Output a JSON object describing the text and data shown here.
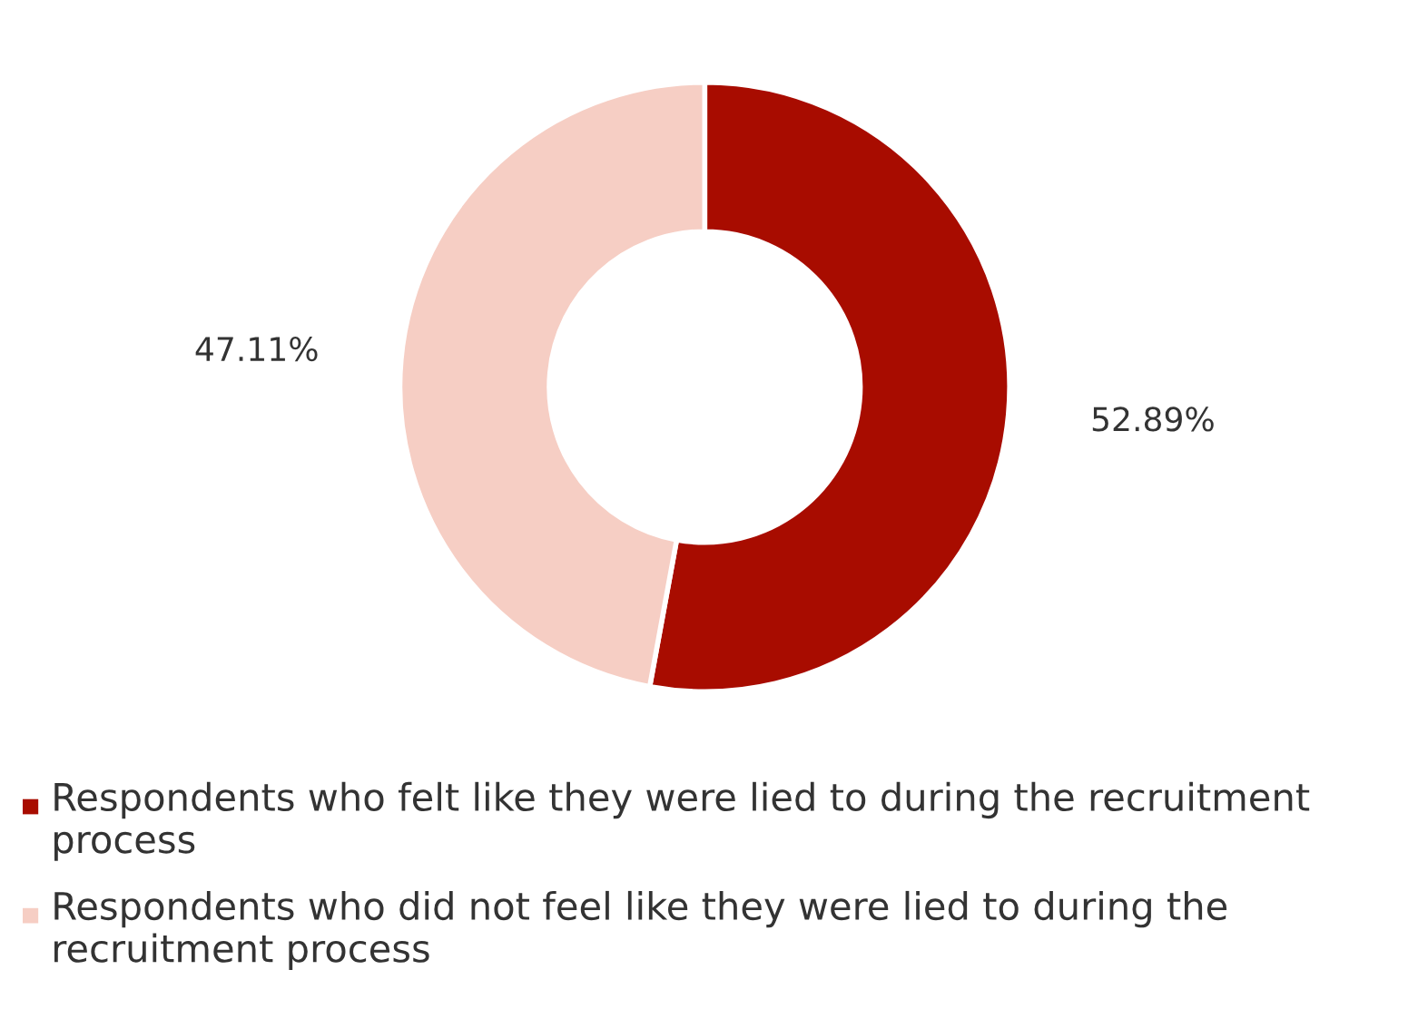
{
  "chart_data": {
    "type": "donut",
    "categories": [
      "Respondents who felt like they were lied to during the recruitment process",
      "Respondents who did not feel like they were lied to during the recruitment process"
    ],
    "values": [
      52.89,
      47.11
    ],
    "colors": [
      "#a80c00",
      "#f6cec4"
    ],
    "value_labels": [
      "52.89%",
      "47.11%"
    ],
    "legend": "bottom"
  }
}
